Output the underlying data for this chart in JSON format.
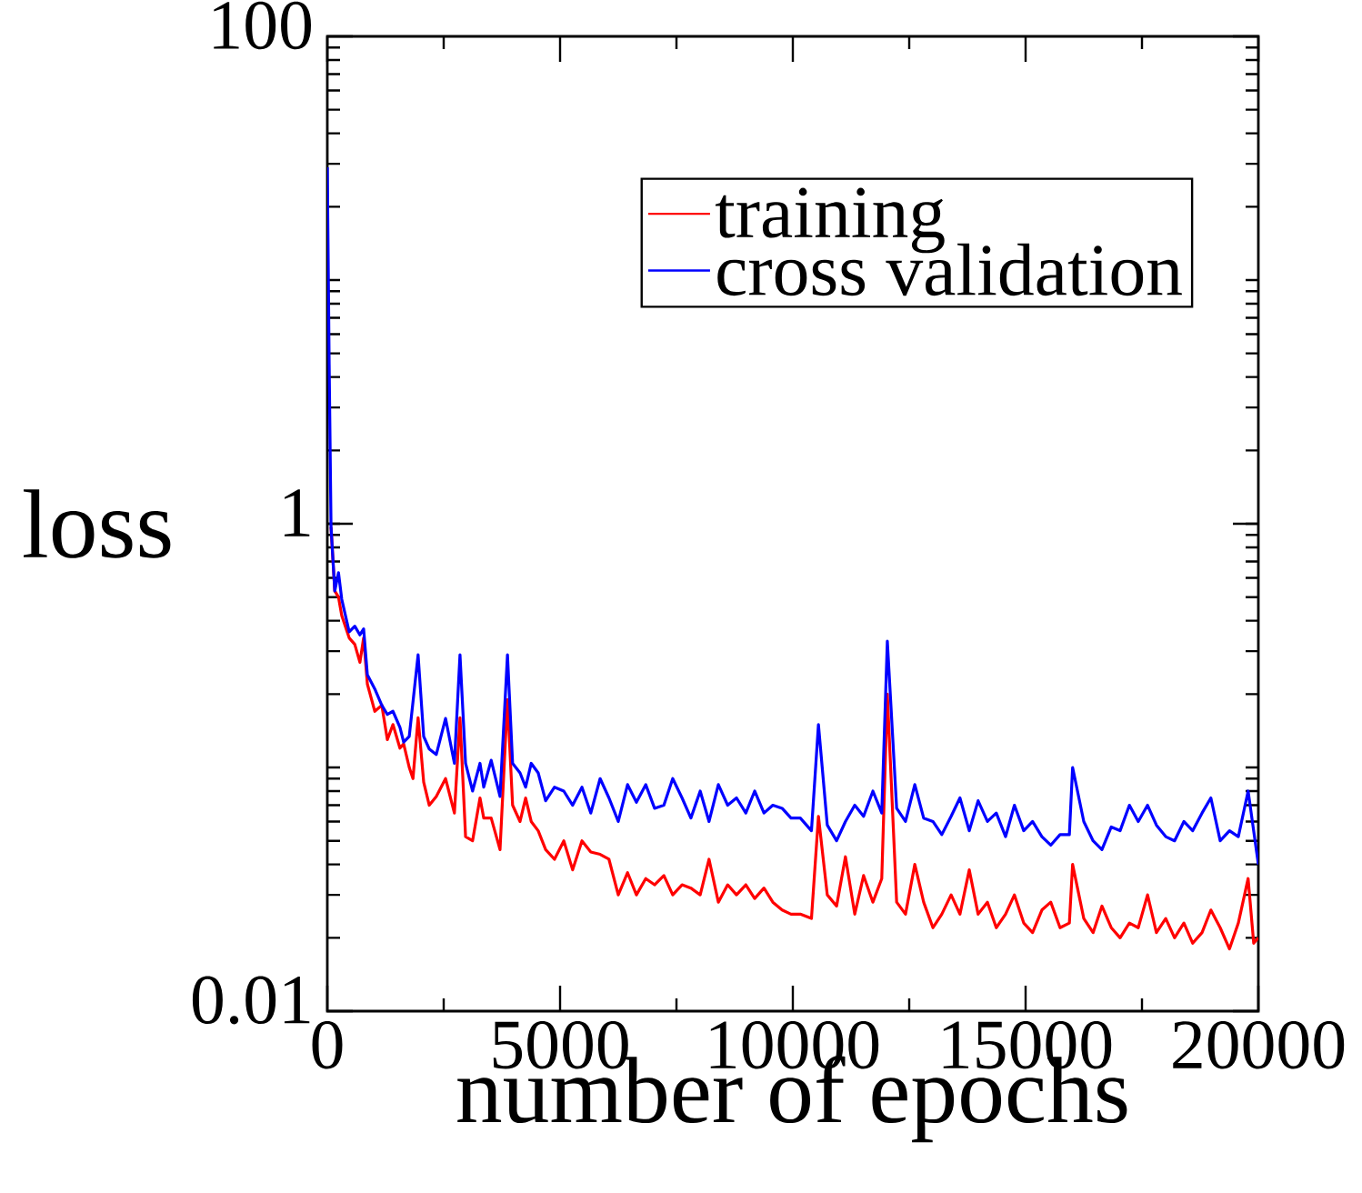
{
  "chart_data": {
    "type": "line",
    "xlabel": "number of epochs",
    "ylabel": "loss",
    "log": "y",
    "xlim": [
      0,
      20000
    ],
    "xticks": [
      0,
      5000,
      10000,
      15000,
      20000
    ],
    "ylim": [
      0.01,
      100
    ],
    "yticks": [
      0.01,
      1,
      100
    ],
    "legend": "top right",
    "grid": false,
    "marker": "none",
    "line_style": "solid",
    "series": [
      {
        "name": "training",
        "color": "#ff0000",
        "x": [
          80,
          160,
          240,
          310,
          470,
          590,
          700,
          780,
          860,
          1020,
          1170,
          1290,
          1410,
          1560,
          1640,
          1760,
          1840,
          1950,
          2070,
          2190,
          2340,
          2540,
          2730,
          2850,
          2970,
          3120,
          3280,
          3360,
          3520,
          3710,
          3870,
          3980,
          4140,
          4260,
          4380,
          4530,
          4690,
          4880,
          5080,
          5270,
          5470,
          5660,
          5860,
          6050,
          6250,
          6450,
          6640,
          6840,
          7030,
          7230,
          7420,
          7620,
          7810,
          8010,
          8200,
          8400,
          8600,
          8790,
          8990,
          9180,
          9380,
          9570,
          9770,
          9960,
          10160,
          10400,
          10550,
          10740,
          10940,
          11130,
          11330,
          11520,
          11720,
          11910,
          12030,
          12230,
          12420,
          12620,
          12810,
          13010,
          13200,
          13400,
          13590,
          13790,
          13980,
          14180,
          14370,
          14570,
          14760,
          14960,
          15150,
          15350,
          15540,
          15740,
          15940,
          16010,
          16250,
          16450,
          16640,
          16840,
          17030,
          17230,
          17420,
          17620,
          17810,
          18010,
          18200,
          18400,
          18590,
          18790,
          18980,
          19180,
          19380,
          19570,
          19780,
          19900,
          20000
        ],
        "values": [
          0.97,
          0.53,
          0.5,
          0.42,
          0.34,
          0.32,
          0.27,
          0.34,
          0.22,
          0.17,
          0.18,
          0.13,
          0.15,
          0.12,
          0.125,
          0.1,
          0.09,
          0.16,
          0.087,
          0.07,
          0.076,
          0.09,
          0.065,
          0.16,
          0.052,
          0.05,
          0.075,
          0.062,
          0.062,
          0.046,
          0.19,
          0.07,
          0.06,
          0.075,
          0.06,
          0.055,
          0.046,
          0.042,
          0.05,
          0.038,
          0.05,
          0.045,
          0.044,
          0.042,
          0.03,
          0.037,
          0.03,
          0.035,
          0.033,
          0.036,
          0.03,
          0.033,
          0.032,
          0.03,
          0.042,
          0.028,
          0.033,
          0.03,
          0.033,
          0.029,
          0.032,
          0.028,
          0.026,
          0.025,
          0.025,
          0.024,
          0.063,
          0.03,
          0.027,
          0.043,
          0.025,
          0.036,
          0.028,
          0.035,
          0.2,
          0.028,
          0.025,
          0.04,
          0.028,
          0.022,
          0.025,
          0.03,
          0.025,
          0.038,
          0.025,
          0.028,
          0.022,
          0.025,
          0.03,
          0.023,
          0.021,
          0.026,
          0.028,
          0.022,
          0.023,
          0.04,
          0.024,
          0.021,
          0.027,
          0.022,
          0.02,
          0.023,
          0.022,
          0.03,
          0.021,
          0.024,
          0.02,
          0.023,
          0.019,
          0.021,
          0.026,
          0.022,
          0.018,
          0.023,
          0.035,
          0.019,
          0.02
        ]
      },
      {
        "name": "cross validation",
        "color": "#0000ff",
        "x": [
          0,
          40,
          80,
          160,
          240,
          310,
          470,
          590,
          700,
          780,
          860,
          1020,
          1170,
          1290,
          1410,
          1560,
          1640,
          1760,
          1950,
          2070,
          2190,
          2340,
          2540,
          2730,
          2850,
          2970,
          3120,
          3280,
          3360,
          3520,
          3710,
          3870,
          3980,
          4140,
          4260,
          4380,
          4530,
          4690,
          4880,
          5080,
          5270,
          5470,
          5660,
          5860,
          6050,
          6250,
          6450,
          6640,
          6840,
          7030,
          7230,
          7420,
          7620,
          7810,
          8010,
          8200,
          8400,
          8600,
          8790,
          8990,
          9180,
          9380,
          9570,
          9770,
          9960,
          10160,
          10400,
          10550,
          10740,
          10940,
          11130,
          11330,
          11520,
          11720,
          11910,
          12030,
          12230,
          12420,
          12620,
          12810,
          13010,
          13200,
          13400,
          13590,
          13790,
          13980,
          14180,
          14370,
          14570,
          14760,
          14960,
          15150,
          15350,
          15540,
          15740,
          15940,
          16010,
          16250,
          16450,
          16640,
          16840,
          17030,
          17230,
          17420,
          17620,
          17810,
          18010,
          18200,
          18400,
          18590,
          18790,
          18980,
          19180,
          19380,
          19570,
          19780,
          20000
        ],
        "values": [
          29,
          4.5,
          0.97,
          0.53,
          0.63,
          0.49,
          0.36,
          0.38,
          0.35,
          0.37,
          0.24,
          0.21,
          0.18,
          0.165,
          0.17,
          0.146,
          0.127,
          0.134,
          0.29,
          0.134,
          0.119,
          0.113,
          0.159,
          0.104,
          0.29,
          0.104,
          0.08,
          0.104,
          0.083,
          0.107,
          0.076,
          0.29,
          0.104,
          0.095,
          0.083,
          0.104,
          0.095,
          0.073,
          0.083,
          0.08,
          0.07,
          0.083,
          0.065,
          0.09,
          0.075,
          0.06,
          0.085,
          0.072,
          0.085,
          0.068,
          0.07,
          0.09,
          0.075,
          0.062,
          0.08,
          0.06,
          0.085,
          0.07,
          0.075,
          0.065,
          0.08,
          0.065,
          0.07,
          0.068,
          0.062,
          0.062,
          0.055,
          0.15,
          0.058,
          0.05,
          0.06,
          0.07,
          0.063,
          0.08,
          0.065,
          0.33,
          0.068,
          0.06,
          0.085,
          0.062,
          0.06,
          0.053,
          0.063,
          0.075,
          0.055,
          0.073,
          0.06,
          0.065,
          0.052,
          0.07,
          0.055,
          0.06,
          0.052,
          0.048,
          0.053,
          0.053,
          0.1,
          0.06,
          0.05,
          0.046,
          0.057,
          0.055,
          0.07,
          0.06,
          0.07,
          0.058,
          0.052,
          0.05,
          0.06,
          0.055,
          0.065,
          0.075,
          0.05,
          0.055,
          0.052,
          0.08,
          0.04
        ]
      }
    ]
  }
}
